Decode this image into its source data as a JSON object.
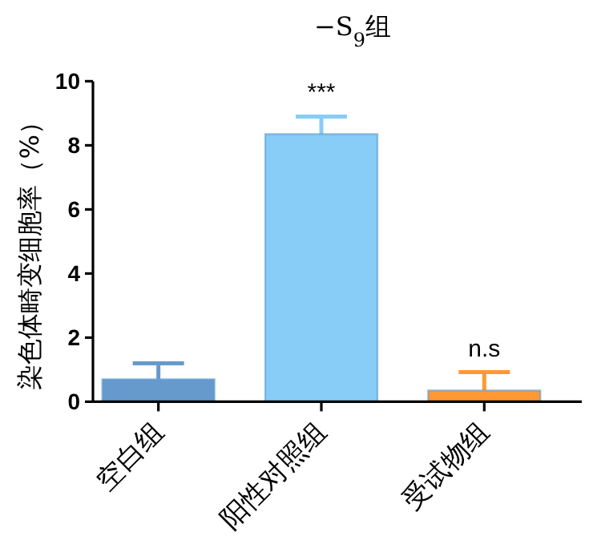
{
  "chart_data": {
    "type": "bar",
    "title": "−S$_{9}$组",
    "ylabel": "染色体畸变细胞率（%）",
    "categories": [
      "空白组",
      "阳性对照组",
      "受试物组"
    ],
    "values": [
      0.7,
      8.35,
      0.35
    ],
    "colors": [
      "#6699cc",
      "#88ccf8",
      "#ff9933"
    ],
    "errors": [
      [
        0.7,
        1.2
      ],
      [
        8.35,
        8.9
      ],
      [
        0.35,
        0.92
      ]
    ],
    "ylim": [
      0,
      10
    ],
    "yticks": [
      0,
      2,
      4,
      6,
      8,
      10
    ],
    "annotations": [
      {
        "text": "***",
        "x": "阳性对照组",
        "y": 8.9
      },
      {
        "text": "n.s",
        "x": "受试物组",
        "y": 0.92
      }
    ]
  }
}
